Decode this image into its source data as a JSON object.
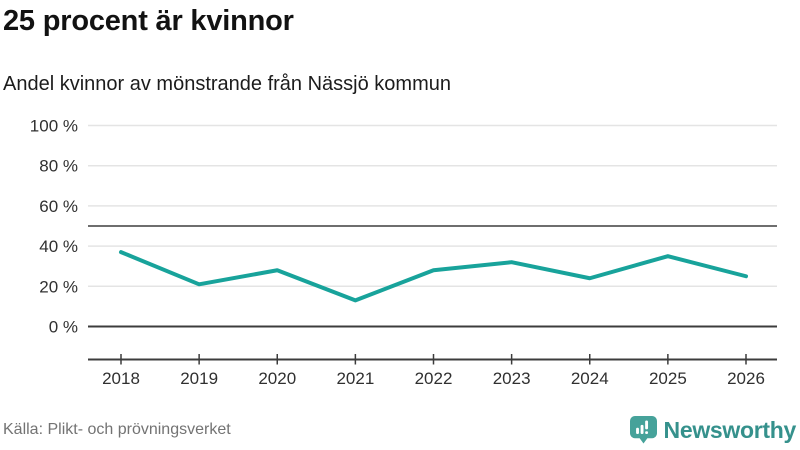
{
  "header": {
    "title": "25 procent är kvinnor",
    "subtitle": "Andel kvinnor av mönstrande från Nässjö kommun"
  },
  "chart_data": {
    "type": "line",
    "title": "25 procent är kvinnor",
    "subtitle": "Andel kvinnor av mönstrande från Nässjö kommun",
    "categories": [
      "2018",
      "2019",
      "2020",
      "2021",
      "2022",
      "2023",
      "2024",
      "2025",
      "2026"
    ],
    "series": [
      {
        "name": "Andel kvinnor av mönstrande",
        "values": [
          37,
          21,
          28,
          13,
          28,
          32,
          24,
          35,
          25
        ]
      }
    ],
    "unit": "%",
    "ylim": [
      0,
      100
    ],
    "yticks": [
      0,
      20,
      40,
      60,
      80,
      100
    ],
    "ytick_suffix": " %",
    "reference_line": 50,
    "grid": "horizontal-only",
    "legend": "none",
    "line_color": "#18A39B"
  },
  "footer": {
    "source": "Källa: Plikt- och prövningsverket",
    "brand": "Newsworthy"
  },
  "colors": {
    "accent_line": "#18A39B",
    "grid_light": "#E4E4E4",
    "grid_mid": "#6E6E6E",
    "axis_dark": "#3C3C3C",
    "logo_teal": "#46A29A",
    "brand_text": "#35918C",
    "source_text": "#737373",
    "text_dark": "#121212"
  }
}
